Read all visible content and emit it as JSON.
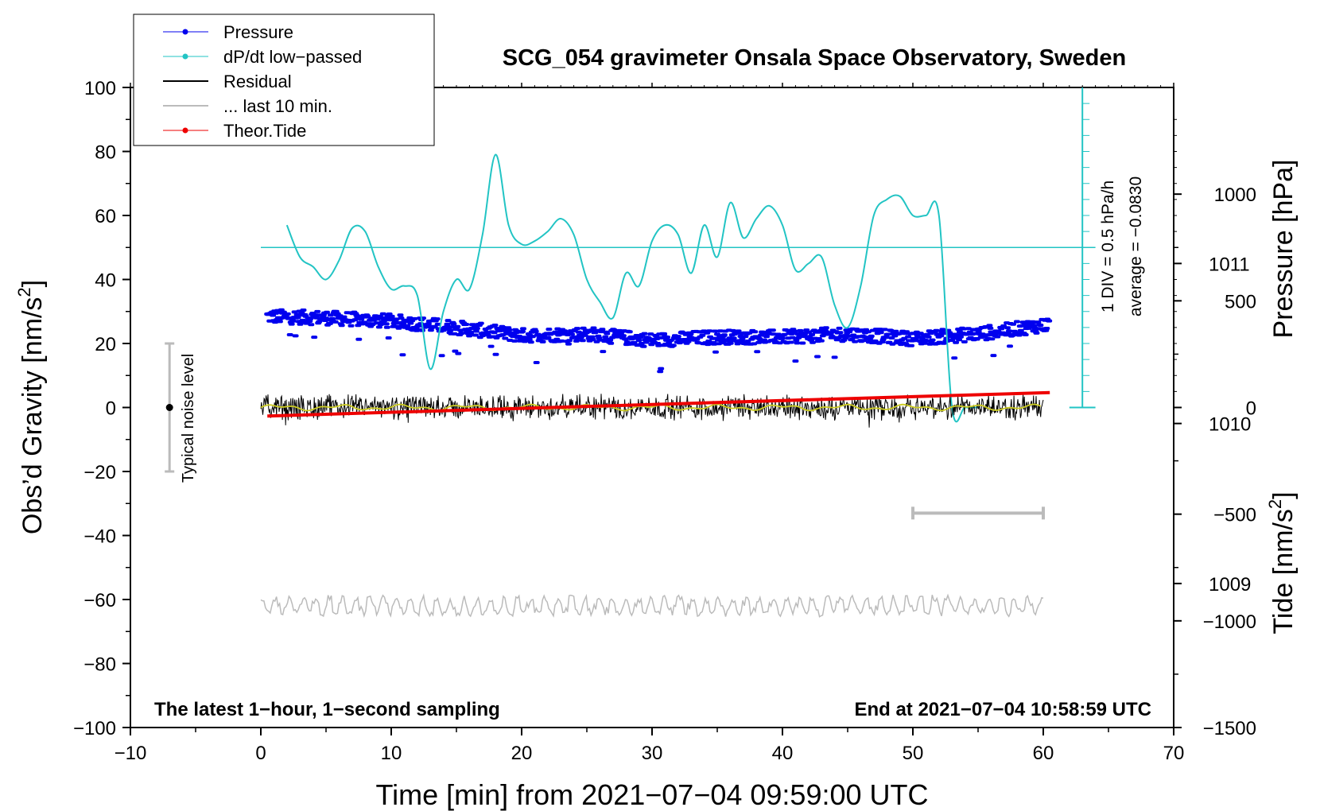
{
  "chart_data": {
    "type": "line",
    "title": "SCG_054 gravimeter Onsala Space Observatory, Sweden",
    "xlabel": "Time [min] from 2021−07−04 09:59:00 UTC",
    "ylabel_left": "Obs’d Gravity [nm/s",
    "ylabel_left_sup": "2",
    "ylabel_left_close": "]",
    "ylabel_pressure": "Pressure [hPa]",
    "ylabel_tide": "Tide [nm/s",
    "ylabel_tide_sup": "2",
    "ylabel_tide_close": "]",
    "xlim": [
      -10,
      70
    ],
    "ylim_left": [
      -100,
      100
    ],
    "ylim_pressure": [
      1008.1,
      1012.1
    ],
    "ylim_tide": [
      -1500,
      1500
    ],
    "x_ticks": [
      "−10",
      "0",
      "10",
      "20",
      "30",
      "40",
      "50",
      "60",
      "70"
    ],
    "x_tick_values": [
      -10,
      0,
      10,
      20,
      30,
      40,
      50,
      60,
      70
    ],
    "y_ticks_left": [
      "−100",
      "−80",
      "−60",
      "−40",
      "−20",
      "0",
      "20",
      "40",
      "60",
      "80",
      "100"
    ],
    "y_tick_values_left": [
      -100,
      -80,
      -60,
      -40,
      -20,
      0,
      20,
      40,
      60,
      80,
      100
    ],
    "pressure_ticks": [
      "1009",
      "1010",
      "1011"
    ],
    "pressure_tick_values": [
      1009,
      1010,
      1011
    ],
    "tide_ticks": [
      "−1500",
      "−1000",
      "−500",
      "0",
      "500",
      "1000"
    ],
    "tide_tick_values": [
      -1500,
      -1000,
      -500,
      0,
      500,
      1000
    ],
    "legend": [
      {
        "label": "Pressure",
        "color": "#0000ee",
        "marker": true
      },
      {
        "label": "dP/dt low−passed",
        "color": "#22c4c4",
        "marker": true
      },
      {
        "label": "Residual",
        "color": "#000000",
        "marker": false
      },
      {
        "label": "... last 10 min.",
        "color": "#bbbbbb",
        "marker": false
      },
      {
        "label": "Theor.Tide",
        "color": "#ee0000",
        "marker": true
      }
    ],
    "annotations": {
      "bottom_left": "The latest 1−hour, 1−second sampling",
      "bottom_right": "End at 2021−07−04 10:58:59 UTC",
      "div_label": "1 DIV = 0.5 hPa/h",
      "average_label": "average = −0.0830",
      "noise_label": "Typical noise level"
    },
    "noise_bar": {
      "x": -7,
      "y_low": -20,
      "y_high": 20
    },
    "last10_bar": {
      "x_start": 50,
      "x_end": 60,
      "y": -33
    },
    "dpdt_zero_line_y": 50,
    "series": [
      {
        "name": "Pressure",
        "color": "#0000ee",
        "axis": "pressure",
        "x_range": [
          0.5,
          60.5
        ],
        "points": [
          [
            0.5,
            1010.67
          ],
          [
            5,
            1010.66
          ],
          [
            10,
            1010.64
          ],
          [
            15,
            1010.6
          ],
          [
            20,
            1010.55
          ],
          [
            25,
            1010.56
          ],
          [
            30,
            1010.52
          ],
          [
            35,
            1010.54
          ],
          [
            40,
            1010.54
          ],
          [
            45,
            1010.56
          ],
          [
            50,
            1010.53
          ],
          [
            55,
            1010.56
          ],
          [
            60.5,
            1010.62
          ]
        ]
      },
      {
        "name": "dP/dt low-passed",
        "color": "#22c4c4",
        "axis": "left",
        "x": [
          2,
          3,
          4,
          5,
          6,
          7,
          8,
          9,
          10,
          11,
          12,
          13,
          14,
          15,
          16,
          17,
          18,
          19,
          20,
          21,
          22,
          23,
          24,
          25,
          26,
          27,
          28,
          29,
          30,
          31,
          32,
          33,
          34,
          35,
          36,
          37,
          38,
          39,
          40,
          41,
          42,
          43,
          44,
          45,
          46,
          47,
          48,
          49,
          50,
          51,
          52,
          53,
          54,
          55,
          56,
          57,
          58
        ],
        "values": [
          57,
          47,
          44,
          40,
          46,
          56,
          55,
          44,
          37,
          38,
          35,
          12,
          30,
          40,
          37,
          54,
          79,
          57,
          51,
          52,
          55,
          59,
          54,
          40,
          33,
          28,
          42,
          38,
          52,
          57,
          54,
          42,
          57,
          47,
          64,
          53,
          59,
          63,
          57,
          43,
          45,
          47,
          32,
          25,
          38,
          60,
          65,
          66,
          60,
          60,
          60,
          0,
          0,
          0,
          0,
          0,
          0
        ]
      },
      {
        "name": "Residual",
        "color": "#000000",
        "axis": "left",
        "x_range": [
          0,
          60
        ],
        "center": 0,
        "amplitude": 3
      },
      {
        "name": "... last 10 min.",
        "color": "#bbbbbb",
        "axis": "left",
        "x_range": [
          0,
          60
        ],
        "center": -62,
        "amplitude": 2.5
      },
      {
        "name": "Theor.Tide",
        "color": "#ee0000",
        "axis": "tide",
        "x": [
          0.5,
          60.5
        ],
        "values": [
          -40,
          70
        ]
      }
    ]
  }
}
